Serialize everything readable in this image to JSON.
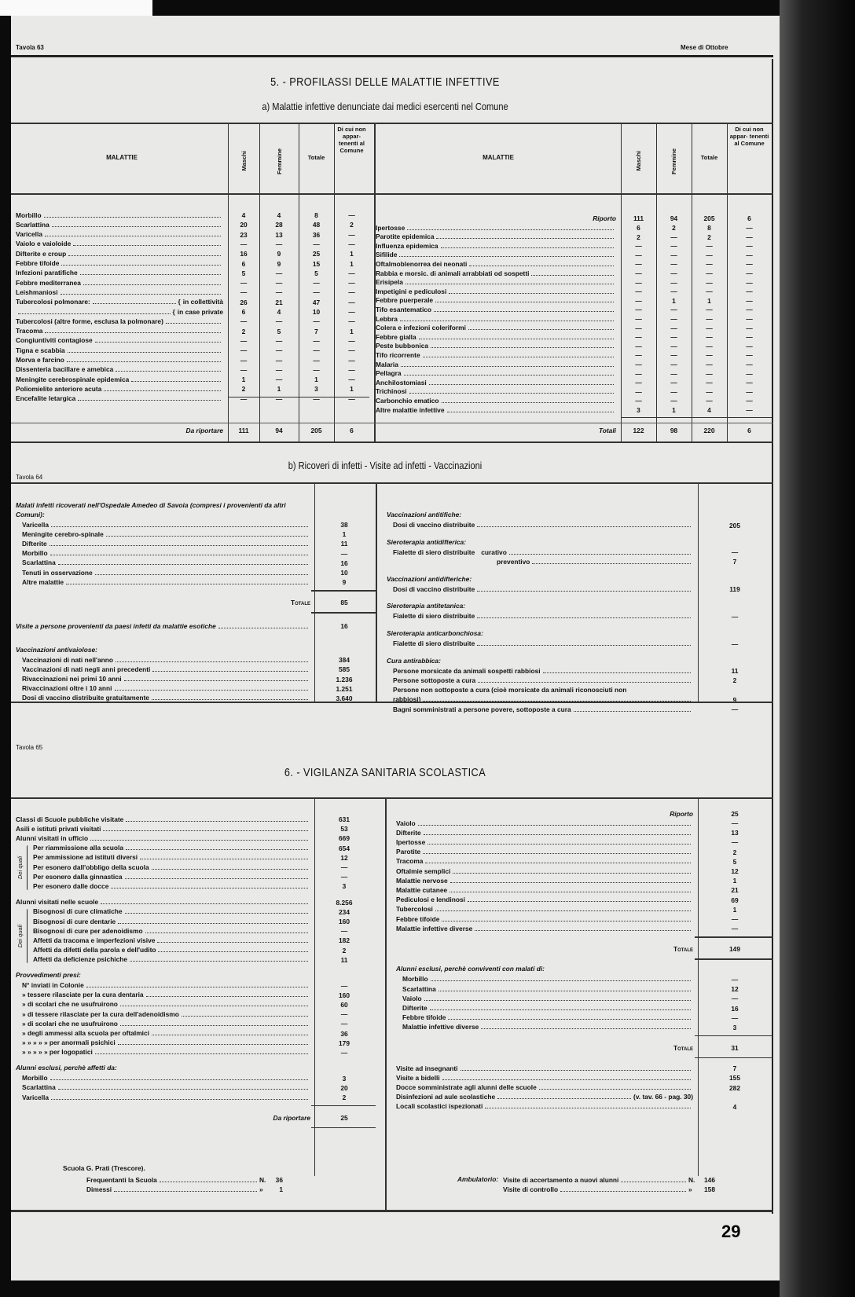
{
  "header": {
    "tavola": "Tavola 63",
    "month": "Mese di Ottobre"
  },
  "section5": {
    "title": "5. - PROFILASSI DELLE MALATTIE INFETTIVE",
    "subtitle": "a) Malattie infettive denunciate dai medici esercenti nel Comune",
    "columns": [
      "MALATTIE",
      "Maschi",
      "Femmine",
      "Totale",
      "Di cui non appar- tenenti al Comune"
    ],
    "left_rows": [
      {
        "label": "Morbillo",
        "v": [
          "4",
          "4",
          "8",
          "—"
        ]
      },
      {
        "label": "Scarlattina",
        "v": [
          "20",
          "28",
          "48",
          "2"
        ]
      },
      {
        "label": "Varicella",
        "v": [
          "23",
          "13",
          "36",
          "—"
        ]
      },
      {
        "label": "Vaiolo e vaioloide",
        "v": [
          "—",
          "—",
          "—",
          "—"
        ]
      },
      {
        "label": "Difterite e croup",
        "v": [
          "16",
          "9",
          "25",
          "1"
        ]
      },
      {
        "label": "Febbre tifoide",
        "v": [
          "6",
          "9",
          "15",
          "1"
        ]
      },
      {
        "label": "Infezioni paratifiche",
        "v": [
          "5",
          "—",
          "5",
          "—"
        ]
      },
      {
        "label": "Febbre mediterranea",
        "v": [
          "—",
          "—",
          "—",
          "—"
        ]
      },
      {
        "label": "Leishmaniosi",
        "v": [
          "—",
          "—",
          "—",
          "—"
        ]
      },
      {
        "label": "Tubercolosi polmonare:",
        "sub": "in collettività",
        "v": [
          "26",
          "21",
          "47",
          "—"
        ]
      },
      {
        "label": "",
        "sub": "in case private",
        "v": [
          "6",
          "4",
          "10",
          "—"
        ]
      },
      {
        "label": "Tubercolosi (altre forme, esclusa la polmonare)",
        "v": [
          "—",
          "—",
          "—",
          "—"
        ]
      },
      {
        "label": "Tracoma",
        "v": [
          "2",
          "5",
          "7",
          "1"
        ]
      },
      {
        "label": "Congiuntiviti contagiose",
        "v": [
          "—",
          "—",
          "—",
          "—"
        ]
      },
      {
        "label": "Tigna e scabbia",
        "v": [
          "—",
          "—",
          "—",
          "—"
        ]
      },
      {
        "label": "Morva e farcino",
        "v": [
          "—",
          "—",
          "—",
          "—"
        ]
      },
      {
        "label": "Dissenteria bacillare e amebica",
        "v": [
          "—",
          "—",
          "—",
          "—"
        ]
      },
      {
        "label": "Meningite cerebrospinale epidemica",
        "v": [
          "1",
          "—",
          "1",
          "—"
        ]
      },
      {
        "label": "Poliomielite anteriore acuta",
        "v": [
          "2",
          "1",
          "3",
          "1"
        ]
      },
      {
        "label": "Encefalite letargica",
        "v": [
          "—",
          "—",
          "—",
          "—"
        ]
      }
    ],
    "left_total": {
      "label": "Da riportare",
      "v": [
        "111",
        "94",
        "205",
        "6"
      ]
    },
    "right_carry": {
      "label": "Riporto",
      "v": [
        "111",
        "94",
        "205",
        "6"
      ]
    },
    "right_rows": [
      {
        "label": "Ipertosse",
        "v": [
          "6",
          "2",
          "8",
          "—"
        ]
      },
      {
        "label": "Parotite epidemica",
        "v": [
          "2",
          "—",
          "2",
          "—"
        ]
      },
      {
        "label": "Influenza epidemica",
        "v": [
          "—",
          "—",
          "—",
          "—"
        ]
      },
      {
        "label": "Sifilide",
        "v": [
          "—",
          "—",
          "—",
          "—"
        ]
      },
      {
        "label": "Oftalmoblenorrea dei neonati",
        "v": [
          "—",
          "—",
          "—",
          "—"
        ]
      },
      {
        "label": "Rabbia e morsic. di animali arrabbiati od sospetti",
        "v": [
          "—",
          "—",
          "—",
          "—"
        ]
      },
      {
        "label": "Erisipela",
        "v": [
          "—",
          "—",
          "—",
          "—"
        ]
      },
      {
        "label": "Impetigini e pediculosi",
        "v": [
          "—",
          "—",
          "—",
          "—"
        ]
      },
      {
        "label": "Febbre puerperale",
        "v": [
          "—",
          "1",
          "1",
          "—"
        ]
      },
      {
        "label": "Tifo esantematico",
        "v": [
          "—",
          "—",
          "—",
          "—"
        ]
      },
      {
        "label": "Lebbra",
        "v": [
          "—",
          "—",
          "—",
          "—"
        ]
      },
      {
        "label": "Colera e infezioni coleriformi",
        "v": [
          "—",
          "—",
          "—",
          "—"
        ]
      },
      {
        "label": "Febbre gialla",
        "v": [
          "—",
          "—",
          "—",
          "—"
        ]
      },
      {
        "label": "Peste bubbonica",
        "v": [
          "—",
          "—",
          "—",
          "—"
        ]
      },
      {
        "label": "Tifo ricorrente",
        "v": [
          "—",
          "—",
          "—",
          "—"
        ]
      },
      {
        "label": "Malaria",
        "v": [
          "—",
          "—",
          "—",
          "—"
        ]
      },
      {
        "label": "Pellagra",
        "v": [
          "—",
          "—",
          "—",
          "—"
        ]
      },
      {
        "label": "Anchilostomiasi",
        "v": [
          "—",
          "—",
          "—",
          "—"
        ]
      },
      {
        "label": "Trichinosi",
        "v": [
          "—",
          "—",
          "—",
          "—"
        ]
      },
      {
        "label": "Carbonchio ematico",
        "v": [
          "—",
          "—",
          "—",
          "—"
        ]
      },
      {
        "label": "Altre malattie infettive",
        "v": [
          "3",
          "1",
          "4",
          "—"
        ]
      }
    ],
    "right_total": {
      "label": "Totali",
      "v": [
        "122",
        "98",
        "220",
        "6"
      ]
    }
  },
  "section5b": {
    "tavola": "Tavola 64",
    "title": "b) Ricoveri di infetti - Visite ad infetti - Vaccinazioni",
    "left": [
      {
        "heading": "Malati infetti ricoverati nell'Ospedale Amedeo di Savoia (compresi i provenienti da altri Comuni):",
        "rows": [
          {
            "label": "Varicella",
            "value": "38"
          },
          {
            "label": "Meningite cerebro-spinale",
            "value": "1"
          },
          {
            "label": "Difterite",
            "value": "11"
          },
          {
            "label": "Morbillo",
            "value": "—"
          },
          {
            "label": "Scarlattina",
            "value": "16"
          },
          {
            "label": "Tenuti in osservazione",
            "value": "10"
          },
          {
            "label": "Altre malattie",
            "value": "9"
          }
        ],
        "total": {
          "label": "Totale",
          "value": "85"
        }
      },
      {
        "heading": "",
        "rows": [
          {
            "label": "Visite a persone provenienti da paesi infetti da malattie esotiche",
            "value": "16",
            "italic": true
          }
        ]
      },
      {
        "heading": "Vaccinazioni antivaiolose:",
        "rows": [
          {
            "label": "Vaccinazioni di nati nell'anno",
            "value": "384"
          },
          {
            "label": "Vaccinazioni di nati negli anni precedenti",
            "value": "585"
          },
          {
            "label": "Rivaccinazioni nei primi 10 anni",
            "value": "1.236"
          },
          {
            "label": "Rivaccinazioni oltre i 10 anni",
            "value": "1.251"
          },
          {
            "label": "Dosi di vaccino distribuite gratuitamente",
            "value": "3.640"
          }
        ]
      }
    ],
    "right": [
      {
        "heading": "Vaccinazioni antitifiche:",
        "rows": [
          {
            "label": "Dosi di vaccino distribuite",
            "value": "205"
          }
        ]
      },
      {
        "heading": "Sieroterapia antidifterica:",
        "rows": [
          {
            "label": "Fialette di siero distribuite",
            "sub": "curativo",
            "value": "—"
          },
          {
            "label": "",
            "sub": "preventivo",
            "value": "7"
          }
        ]
      },
      {
        "heading": "Vaccinazioni antidifteriche:",
        "rows": [
          {
            "label": "Dosi di vaccino distribuite",
            "value": "119"
          }
        ]
      },
      {
        "heading": "Sieroterapia antitetanica:",
        "rows": [
          {
            "label": "Fialette di siero distribuite",
            "value": "—"
          }
        ]
      },
      {
        "heading": "Sieroterapia anticarbonchiosa:",
        "rows": [
          {
            "label": "Fialette di siero distribuite",
            "value": "—"
          }
        ]
      },
      {
        "heading": "Cura antirabbica:",
        "rows": [
          {
            "label": "Persone morsicate da animali sospetti rabbiosi",
            "value": "11"
          },
          {
            "label": "Persone sottoposte a cura",
            "value": "2"
          },
          {
            "label": "Persone non sottoposte a cura (cioè morsicate da animali riconosciuti non",
            "value": ""
          },
          {
            "label": "rabbiosi)",
            "value": "9"
          },
          {
            "label": "Bagni somministrati a persone povere, sottoposte a cura",
            "value": "—"
          }
        ]
      }
    ]
  },
  "section6": {
    "tavola": "Tavola 65",
    "title": "6. - VIGILANZA SANITARIA SCOLASTICA",
    "bracket_label": "Dei quali",
    "left": [
      {
        "heading": "",
        "rows": [
          {
            "label": "Classi di Scuole pubbliche visitate",
            "value": "631"
          },
          {
            "label": "Asili e istituti privati visitati",
            "value": "53"
          },
          {
            "label": "Alunni visitati in ufficio",
            "value": "669"
          },
          {
            "label": "Per riammissione alla scuola",
            "value": "654",
            "indent": true
          },
          {
            "label": "Per ammissione ad istituti diversi",
            "value": "12",
            "indent": true
          },
          {
            "label": "Per esonero dall'obbligo della scuola",
            "value": "—",
            "indent": true
          },
          {
            "label": "Per esonero dalla ginnastica",
            "value": "—",
            "indent": true
          },
          {
            "label": "Per esonero dalle docce",
            "value": "3",
            "indent": true
          }
        ]
      },
      {
        "heading": "",
        "rows": [
          {
            "label": "Alunni visitati nelle scuole",
            "value": "8.256"
          },
          {
            "label": "Bisognosi di cure climatiche",
            "value": "234",
            "indent": true
          },
          {
            "label": "Bisognosi di cure dentarie",
            "value": "160",
            "indent": true
          },
          {
            "label": "Bisognosi di cure per adenoidismo",
            "value": "—",
            "indent": true
          },
          {
            "label": "Affetti da tracoma e imperfezioni visive",
            "value": "182",
            "indent": true
          },
          {
            "label": "Affetti da difetti della parola e dell'udito",
            "value": "2",
            "indent": true
          },
          {
            "label": "Affetti da deficienze psichiche",
            "value": "11",
            "indent": true
          }
        ]
      },
      {
        "heading": "Provvedimenti presi:",
        "rows": [
          {
            "label": "N° inviati in Colonie",
            "value": "—"
          },
          {
            "label": "» tessere rilasciate per la cura dentaria",
            "value": "160"
          },
          {
            "label": "» di scolari che ne usufruirono",
            "value": "60"
          },
          {
            "label": "» di tessere rilasciate per la cura dell'adenoidismo",
            "value": "—"
          },
          {
            "label": "» di scolari che ne usufruirono",
            "value": "—"
          },
          {
            "label": "» degli ammessi alla scuola per oftalmici",
            "value": "36"
          },
          {
            "label": "»      »      »      »      »      per anormali psichici",
            "value": "179"
          },
          {
            "label": "»      »      »      »      »      per logopatici",
            "value": "—"
          }
        ]
      },
      {
        "heading": "Alunni esclusi, perchè affetti da:",
        "rows": [
          {
            "label": "Morbillo",
            "value": "3"
          },
          {
            "label": "Scarlattina",
            "value": "20"
          },
          {
            "label": "Varicella",
            "value": "2"
          }
        ],
        "total": {
          "label": "Da riportare",
          "value": "25"
        }
      }
    ],
    "right": [
      {
        "carry": {
          "label": "Riporto",
          "value": "25"
        },
        "rows": [
          {
            "label": "Vaiolo",
            "value": "—"
          },
          {
            "label": "Difterite",
            "value": "13"
          },
          {
            "label": "Ipertosse",
            "value": "—"
          },
          {
            "label": "Parotite",
            "value": "2"
          },
          {
            "label": "Tracoma",
            "value": "5"
          },
          {
            "label": "Oftalmie semplici",
            "value": "12"
          },
          {
            "label": "Malattie nervose",
            "value": "1"
          },
          {
            "label": "Malattie cutanee",
            "value": "21"
          },
          {
            "label": "Pediculosi e lendinosi",
            "value": "69"
          },
          {
            "label": "Tubercolosi",
            "value": "1"
          },
          {
            "label": "Febbre tifoide",
            "value": "—"
          },
          {
            "label": "Malattie infettive diverse",
            "value": "—"
          }
        ],
        "total": {
          "label": "Totale",
          "value": "149"
        }
      },
      {
        "heading": "Alunni esclusi, perchè conviventi con malati di:",
        "rows": [
          {
            "label": "Morbillo",
            "value": "—"
          },
          {
            "label": "Scarlattina",
            "value": "12"
          },
          {
            "label": "Vaiolo",
            "value": "—"
          },
          {
            "label": "Difterite",
            "value": "16"
          },
          {
            "label": "Febbre tifoide",
            "value": "—"
          },
          {
            "label": "Malattie infettive diverse",
            "value": "3"
          }
        ],
        "total": {
          "label": "Totale",
          "value": "31"
        }
      },
      {
        "rows": [
          {
            "label": "Visite ad insegnanti",
            "value": "7"
          },
          {
            "label": "Visite a bidelli",
            "value": "155"
          },
          {
            "label": "Docce somministrate agli alunni delle scuole",
            "value": "282"
          },
          {
            "label": "Disinfezioni ad aule scolastiche",
            "note": "(v. tav. 66 - pag. 30)",
            "value": ""
          },
          {
            "label": "Locali scolastici ispezionati",
            "value": "4"
          }
        ]
      }
    ],
    "footer": {
      "school": "Scuola G. Prati (Trescore).",
      "school_rows": [
        {
          "label": "Frequentanti la Scuola",
          "prefix": "N.",
          "value": "36"
        },
        {
          "label": "Dimessi",
          "prefix": "»",
          "value": "1"
        }
      ],
      "clinic_label": "Ambulatorio:",
      "clinic_rows": [
        {
          "label": "Visite di accertamento a nuovi alunni",
          "prefix": "N.",
          "value": "146"
        },
        {
          "label": "Visite di controllo",
          "prefix": "»",
          "value": "158"
        }
      ]
    }
  },
  "page_number": "29"
}
